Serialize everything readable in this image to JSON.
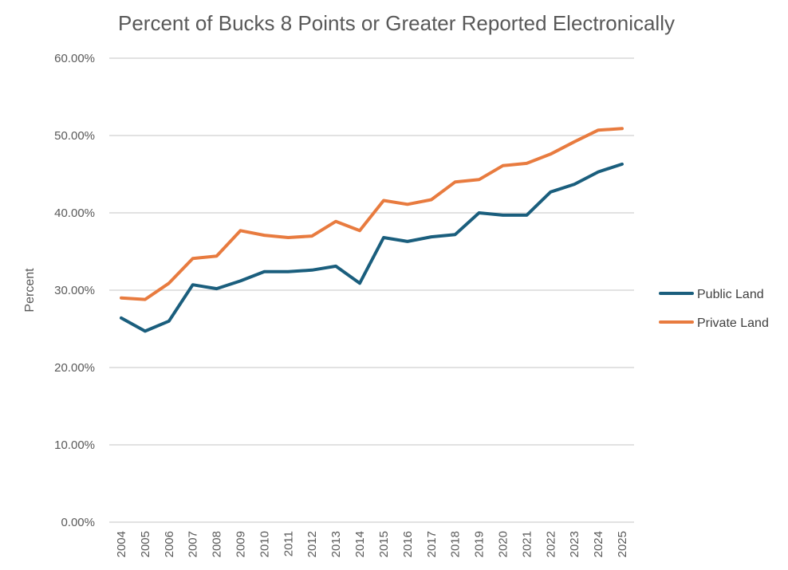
{
  "chart_data": {
    "type": "line",
    "title": "Percent of Bucks 8 Points or Greater Reported Electronically",
    "ylabel": "Percent",
    "xlabel": "",
    "ylim": [
      0,
      60
    ],
    "y_ticks": [
      "0.00%",
      "10.00%",
      "20.00%",
      "30.00%",
      "40.00%",
      "50.00%",
      "60.00%"
    ],
    "y_tick_values": [
      0,
      10,
      20,
      30,
      40,
      50,
      60
    ],
    "grid": true,
    "legend_position": "right",
    "categories": [
      "2004",
      "2005",
      "2006",
      "2007",
      "2008",
      "2009",
      "2010",
      "2011",
      "2012",
      "2013",
      "2014",
      "2015",
      "2016",
      "2017",
      "2018",
      "2019",
      "2020",
      "2021",
      "2022",
      "2023",
      "2024",
      "2025"
    ],
    "series": [
      {
        "name": "Public Land",
        "color": "#1a5e7d",
        "values": [
          26.4,
          24.7,
          26.0,
          30.7,
          30.2,
          31.2,
          32.4,
          32.4,
          32.6,
          33.1,
          30.9,
          36.8,
          36.3,
          36.9,
          37.2,
          40.0,
          39.7,
          39.7,
          42.7,
          43.7,
          45.3,
          46.3
        ]
      },
      {
        "name": "Private Land",
        "color": "#e87b3f",
        "values": [
          29.0,
          28.8,
          30.9,
          34.1,
          34.4,
          37.7,
          37.1,
          36.8,
          37.0,
          38.9,
          37.7,
          41.6,
          41.1,
          41.7,
          44.0,
          44.3,
          46.1,
          46.4,
          47.6,
          49.2,
          50.7,
          50.9
        ]
      }
    ]
  }
}
